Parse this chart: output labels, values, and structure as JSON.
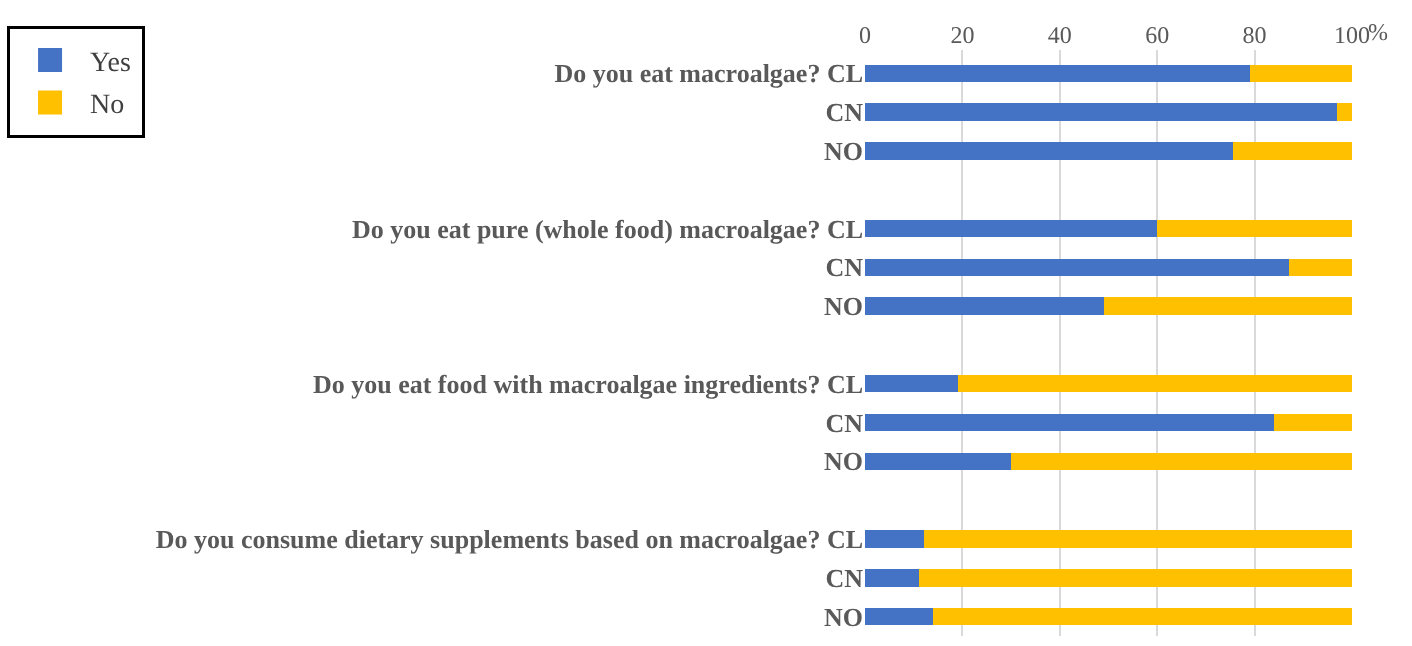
{
  "chart_data": {
    "type": "bar",
    "orientation": "horizontal",
    "stacked": true,
    "categories": [
      "Do you eat macroalgae? CL",
      "CN",
      "NO",
      null,
      "Do you eat pure (whole food) macroalgae? CL",
      "CN",
      "NO",
      null,
      "Do you eat food with macroalgae ingredients? CL",
      "CN",
      "NO",
      null,
      "Do you consume dietary supplements based on macroalgae? CL",
      "CN",
      "NO"
    ],
    "series": [
      {
        "name": "Yes",
        "color": "#4472c4",
        "values": [
          79,
          97,
          75.5,
          null,
          60,
          87,
          49,
          null,
          19,
          84,
          30,
          null,
          12,
          11,
          14
        ]
      },
      {
        "name": "No",
        "color": "#ffc000",
        "values": [
          21,
          3,
          24.5,
          null,
          40,
          13,
          51,
          null,
          81,
          16,
          70,
          null,
          88,
          89,
          86
        ]
      }
    ],
    "xlim": [
      0,
      100
    ],
    "xticks": [
      0,
      20,
      40,
      60,
      80,
      100
    ],
    "xlabel": "%",
    "grid": "x",
    "legend": "top left"
  }
}
